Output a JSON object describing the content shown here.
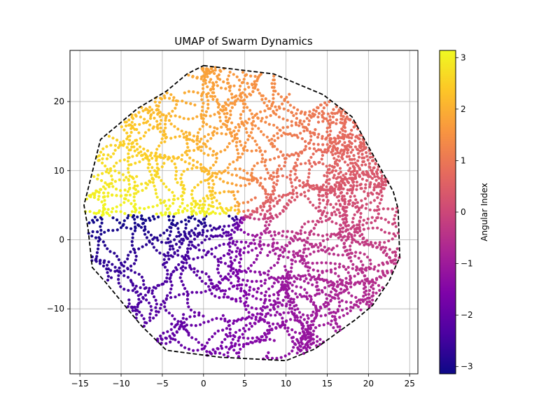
{
  "chart_data": {
    "type": "scatter",
    "title": "UMAP of Swarm Dynamics",
    "xlabel": "",
    "ylabel": "",
    "xlim": [
      -16.2,
      26.0
    ],
    "ylim": [
      -19.4,
      27.4
    ],
    "x_ticks": [
      -15,
      -10,
      -5,
      0,
      5,
      10,
      15,
      20,
      25
    ],
    "y_ticks": [
      -10,
      0,
      10,
      20
    ],
    "grid": true,
    "colormap": "plasma",
    "colorbar": {
      "label": "Angular Index",
      "range": [
        -3.14,
        3.14
      ],
      "ticks": [
        3,
        2,
        1,
        0,
        -1,
        -2,
        -3
      ],
      "tick_labels": [
        "3",
        "2",
        "1",
        "0",
        "−1",
        "−2",
        "−3"
      ]
    },
    "hull": {
      "style": "dashed",
      "color": "#000000",
      "points": [
        [
          0.0,
          25.2
        ],
        [
          8.5,
          24.0
        ],
        [
          14.5,
          21.0
        ],
        [
          18.0,
          17.8
        ],
        [
          23.0,
          7.0
        ],
        [
          23.6,
          4.5
        ],
        [
          23.8,
          -2.5
        ],
        [
          22.5,
          -6.0
        ],
        [
          20.5,
          -9.5
        ],
        [
          18.5,
          -11.5
        ],
        [
          13.5,
          -15.8
        ],
        [
          10.0,
          -17.5
        ],
        [
          2.0,
          -17.0
        ],
        [
          -4.5,
          -16.0
        ],
        [
          -7.5,
          -12.5
        ],
        [
          -12.0,
          -6.0
        ],
        [
          -13.5,
          -4.0
        ],
        [
          -14.0,
          1.5
        ],
        [
          -14.5,
          5.0
        ],
        [
          -12.5,
          14.5
        ],
        [
          -8.0,
          19.0
        ],
        [
          -4.5,
          21.5
        ],
        [
          -2.0,
          24.0
        ]
      ]
    },
    "point_generation": {
      "description_of_data": "closed snake-like curves inside the hull; each point coloured by its angular index (atan2 about the centre)",
      "center": [
        4.6,
        3.5
      ],
      "count": 3600,
      "color_range": [
        -3.14,
        3.14
      ]
    }
  }
}
